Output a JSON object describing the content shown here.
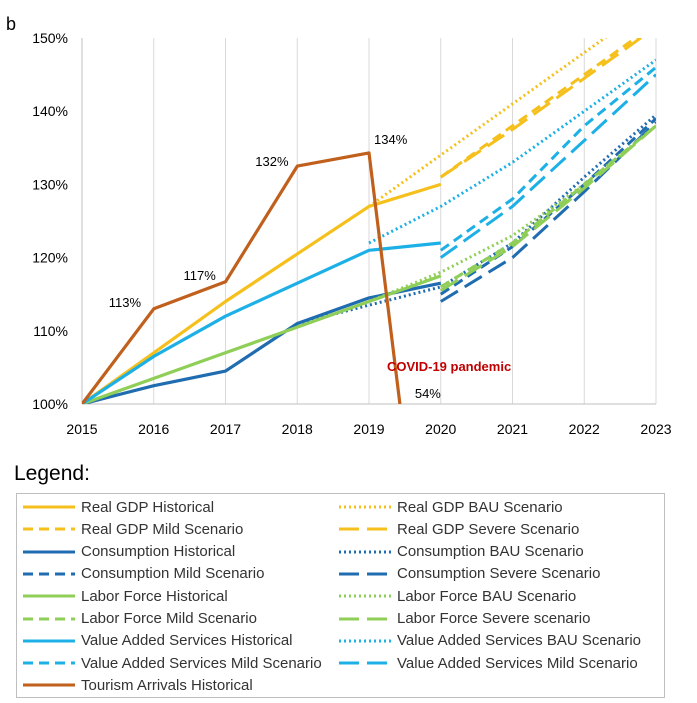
{
  "panel_label": "b",
  "chart_data": {
    "type": "line",
    "x_ticks": [
      "2015",
      "2016",
      "2017",
      "2018",
      "2019",
      "2020",
      "2021",
      "2022",
      "2023"
    ],
    "y_ticks": [
      "100%",
      "110%",
      "120%",
      "130%",
      "140%",
      "150%"
    ],
    "ylim": [
      100,
      150
    ],
    "xlim": [
      2015,
      2023
    ],
    "grid": "vertical",
    "series": [
      {
        "name": "Real GDP Historical",
        "color": "#f5c01c",
        "style": "solid",
        "x": [
          2015,
          2016,
          2017,
          2018,
          2019,
          2020
        ],
        "y": [
          100,
          107,
          114,
          120.5,
          127,
          130
        ]
      },
      {
        "name": "Real GDP BAU Scenario",
        "color": "#f5c01c",
        "style": "dotted",
        "x": [
          2019,
          2020,
          2021,
          2022,
          2023
        ],
        "y": [
          127,
          134,
          141,
          148,
          155
        ]
      },
      {
        "name": "Real GDP Mild Scenario",
        "color": "#f5c01c",
        "style": "dashed",
        "x": [
          2020,
          2021,
          2022,
          2023
        ],
        "y": [
          131,
          138,
          145,
          152
        ]
      },
      {
        "name": "Real GDP Severe Scenario",
        "color": "#f5c01c",
        "style": "longdash",
        "x": [
          2020,
          2021,
          2022,
          2023
        ],
        "y": [
          131,
          137.5,
          144.5,
          151.5
        ]
      },
      {
        "name": "Consumption Historical",
        "color": "#1f6cb0",
        "style": "solid",
        "x": [
          2015,
          2016,
          2017,
          2018,
          2019,
          2020
        ],
        "y": [
          100,
          102.5,
          104.5,
          111,
          114.5,
          116.5
        ]
      },
      {
        "name": "Consumption BAU Scenario",
        "color": "#1f6cb0",
        "style": "dotted",
        "x": [
          2018,
          2019,
          2020,
          2021,
          2022,
          2023
        ],
        "y": [
          111,
          113.5,
          116,
          122,
          131,
          139.5
        ]
      },
      {
        "name": "Consumption Mild Scenario",
        "color": "#1f6cb0",
        "style": "dashed",
        "x": [
          2020,
          2021,
          2022,
          2023
        ],
        "y": [
          115,
          121.5,
          130,
          139
        ]
      },
      {
        "name": "Consumption Severe Scenario",
        "color": "#1f6cb0",
        "style": "longdash",
        "x": [
          2020,
          2021,
          2022,
          2023
        ],
        "y": [
          114,
          120,
          129,
          138.5
        ]
      },
      {
        "name": "Labor Force Historical",
        "color": "#8fce57",
        "style": "solid",
        "x": [
          2015,
          2016,
          2017,
          2018,
          2019,
          2020
        ],
        "y": [
          100,
          103.5,
          107,
          110.5,
          114,
          117.5
        ]
      },
      {
        "name": "Labor Force BAU Scenario",
        "color": "#8fce57",
        "style": "dotted",
        "x": [
          2019,
          2020,
          2021,
          2022,
          2023
        ],
        "y": [
          114,
          118,
          123,
          130,
          138
        ]
      },
      {
        "name": "Labor Force Mild Scenario",
        "color": "#8fce57",
        "style": "dashed",
        "x": [
          2020,
          2021,
          2022,
          2023
        ],
        "y": [
          116,
          122,
          130,
          138
        ]
      },
      {
        "name": "Labor Force Severe scenario",
        "color": "#8fce57",
        "style": "longdash",
        "x": [
          2020,
          2021,
          2022,
          2023
        ],
        "y": [
          115.5,
          121.5,
          129.5,
          138
        ]
      },
      {
        "name": "Value Added Services Historical",
        "color": "#1cb0e6",
        "style": "solid",
        "x": [
          2015,
          2016,
          2017,
          2018,
          2019,
          2020
        ],
        "y": [
          100,
          106.5,
          112,
          116.5,
          121,
          122
        ]
      },
      {
        "name": "Value Added Services BAU Scenario",
        "color": "#1cb0e6",
        "style": "dotted",
        "x": [
          2019,
          2020,
          2021,
          2022,
          2023
        ],
        "y": [
          122,
          127,
          133,
          140,
          147
        ]
      },
      {
        "name": "Value Added Services Mild Scenario",
        "color": "#1cb0e6",
        "style": "dashed",
        "x": [
          2020,
          2021,
          2022,
          2023
        ],
        "y": [
          121,
          128,
          138,
          146
        ]
      },
      {
        "name": "Value Added Services Mild Scenario",
        "color": "#1cb0e6",
        "style": "longdash",
        "x": [
          2020,
          2021,
          2022,
          2023
        ],
        "y": [
          120,
          127,
          136,
          145
        ]
      },
      {
        "name": "Tourism Arrivals Historical",
        "color": "#c0601c",
        "style": "solid",
        "x": [
          2015,
          2016,
          2017,
          2018,
          2019,
          2019.43
        ],
        "y": [
          100,
          113,
          116.7,
          132.5,
          134.3,
          100
        ]
      }
    ],
    "annotations": [
      {
        "text": "113%",
        "x": 2016,
        "y": 113
      },
      {
        "text": "117%",
        "x": 2017,
        "y": 116.7
      },
      {
        "text": "132%",
        "x": 2018,
        "y": 132.5
      },
      {
        "text": "134%",
        "x": 2019,
        "y": 134.3
      },
      {
        "text": "54%",
        "x": 2019.43,
        "y": 100
      }
    ],
    "covid_label": "COVID-19 pandemic",
    "legend_title": "Legend:",
    "legend_placement": "bottom"
  }
}
